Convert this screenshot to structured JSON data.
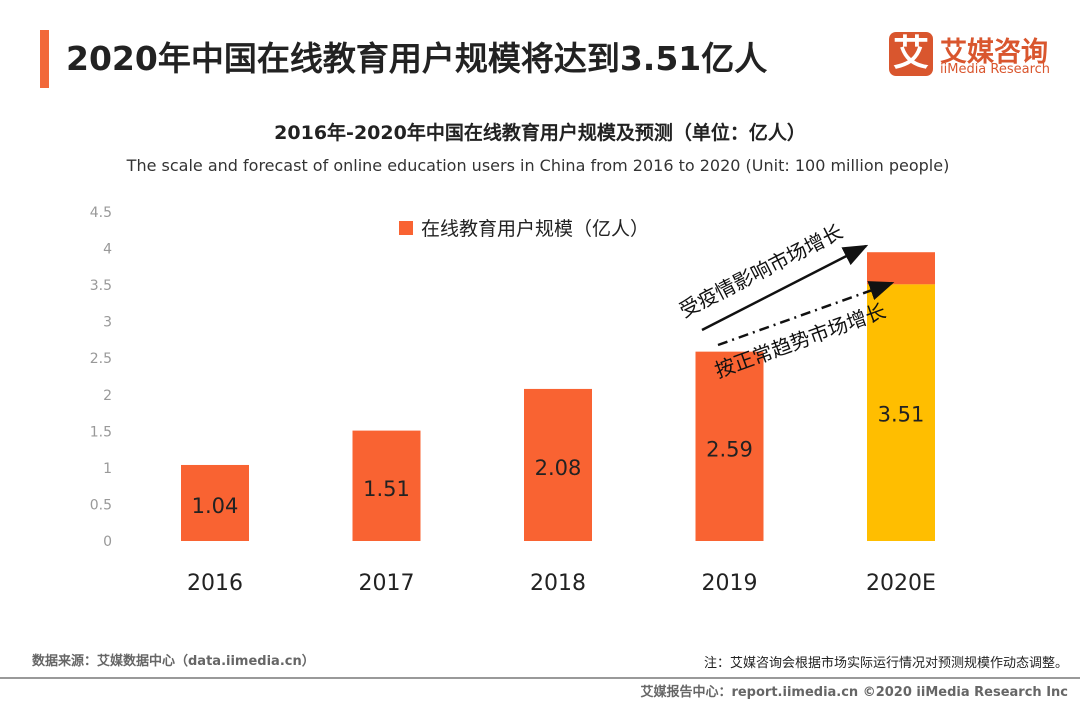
{
  "header": {
    "title": "2020年中国在线教育用户规模将达到3.51亿人"
  },
  "logo": {
    "mark": "艾",
    "cn": "艾媒咨询",
    "en": "iiMedia Research",
    "color": "#d9562e"
  },
  "chart_data": {
    "type": "bar",
    "title": "2016年-2020年中国在线教育用户规模及预测（单位：亿人）",
    "subtitle": "The scale and forecast of online education users in China from 2016 to 2020 (Unit: 100 million people)",
    "categories": [
      "2016",
      "2017",
      "2018",
      "2019",
      "2020E"
    ],
    "series": [
      {
        "name": "在线教育用户规模（亿人）",
        "values": [
          1.04,
          1.51,
          2.08,
          2.59,
          3.51
        ],
        "color": "#f96332"
      }
    ],
    "forecast_highlight": {
      "category": "2020E",
      "base_value": 3.51,
      "base_color": "#ffbe00",
      "top_value": 3.95,
      "top_color": "#f96332"
    },
    "data_labels": [
      "1.04",
      "1.51",
      "2.08",
      "2.59",
      "3.51"
    ],
    "ylim": [
      0,
      4.5
    ],
    "yticks": [
      "0",
      "0.5",
      "1",
      "1.5",
      "2",
      "2.5",
      "3",
      "3.5",
      "4",
      "4.5"
    ],
    "grid": false,
    "legend": "top-center",
    "annotations": [
      "受疫情影响市场增长",
      "按正常趋势市场增长"
    ]
  },
  "footer": {
    "source": "数据来源：艾媒数据中心（data.iimedia.cn）",
    "note": "注：艾媒咨询会根据市场实际运行情况对预测规模作动态调整。",
    "credit": "艾媒报告中心：report.iimedia.cn   ©2020  iiMedia Research  Inc"
  }
}
